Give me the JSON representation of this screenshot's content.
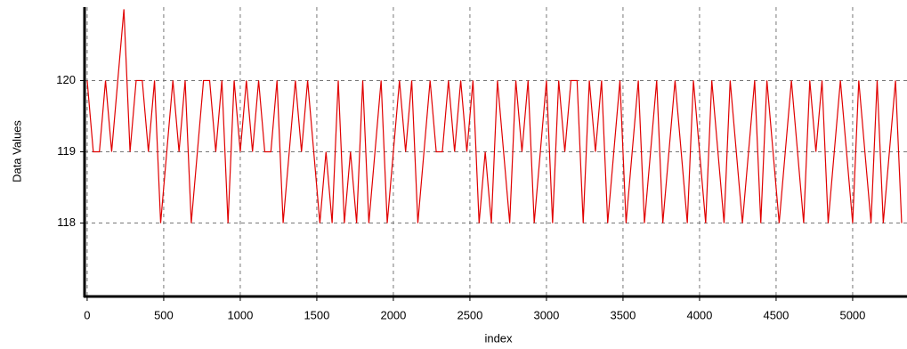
{
  "chart_data": {
    "type": "line",
    "x_label": "index",
    "y_label": "Data Values",
    "x": [
      0,
      40,
      80,
      120,
      160,
      200,
      240,
      280,
      320,
      360,
      400,
      440,
      480,
      520,
      560,
      600,
      640,
      680,
      720,
      760,
      800,
      840,
      880,
      920,
      960,
      1000,
      1040,
      1080,
      1120,
      1160,
      1200,
      1240,
      1280,
      1320,
      1360,
      1400,
      1440,
      1480,
      1520,
      1560,
      1600,
      1640,
      1680,
      1720,
      1760,
      1800,
      1840,
      1880,
      1920,
      1960,
      2000,
      2040,
      2080,
      2120,
      2160,
      2200,
      2240,
      2280,
      2320,
      2360,
      2400,
      2440,
      2480,
      2520,
      2560,
      2600,
      2640,
      2680,
      2720,
      2760,
      2800,
      2840,
      2880,
      2920,
      2960,
      3000,
      3040,
      3080,
      3120,
      3160,
      3200,
      3240,
      3280,
      3320,
      3360,
      3400,
      3440,
      3480,
      3520,
      3560,
      3600,
      3640,
      3680,
      3720,
      3760,
      3800,
      3840,
      3880,
      3920,
      3960,
      4000,
      4040,
      4080,
      4120,
      4160,
      4200,
      4240,
      4280,
      4320,
      4360,
      4400,
      4440,
      4480,
      4520,
      4560,
      4600,
      4640,
      4680,
      4720,
      4760,
      4800,
      4840,
      4880,
      4920,
      4960,
      5000,
      5040,
      5080,
      5120,
      5160,
      5200,
      5240,
      5280,
      5320
    ],
    "series": [
      {
        "color": "#e00000",
        "values": [
          120,
          119,
          119,
          120,
          119,
          120,
          121,
          119,
          120,
          120,
          119,
          120,
          118,
          119,
          120,
          119,
          120,
          118,
          119,
          120,
          120,
          119,
          120,
          118,
          120,
          119,
          120,
          119,
          120,
          119,
          119,
          120,
          118,
          119,
          120,
          119,
          120,
          119,
          118,
          119,
          118,
          120,
          118,
          119,
          118,
          120,
          118,
          119,
          120,
          118,
          119,
          120,
          119,
          120,
          118,
          119,
          120,
          119,
          119,
          120,
          119,
          120,
          119,
          120,
          118,
          119,
          118,
          120,
          119,
          118,
          120,
          119,
          120,
          118,
          119,
          120,
          118,
          120,
          119,
          120,
          120,
          118,
          120,
          119,
          120,
          118,
          119,
          120,
          118,
          119,
          120,
          118,
          119,
          120,
          118,
          119,
          120,
          119,
          118,
          120,
          119,
          118,
          120,
          119,
          118,
          120,
          119,
          118,
          119,
          120,
          118,
          120,
          119,
          118,
          119,
          120,
          119,
          118,
          120,
          119,
          120,
          118,
          119,
          120,
          119,
          118,
          120,
          119,
          118,
          120,
          118,
          119,
          120,
          118
        ]
      }
    ],
    "xlim": [
      -17,
      5355
    ],
    "ylim": [
      116.97,
      121.03
    ],
    "xticks": [
      0,
      500,
      1000,
      1500,
      2000,
      2500,
      3000,
      3500,
      4000,
      4500,
      5000
    ],
    "yticks": [
      118,
      119,
      120
    ],
    "grid": true
  }
}
